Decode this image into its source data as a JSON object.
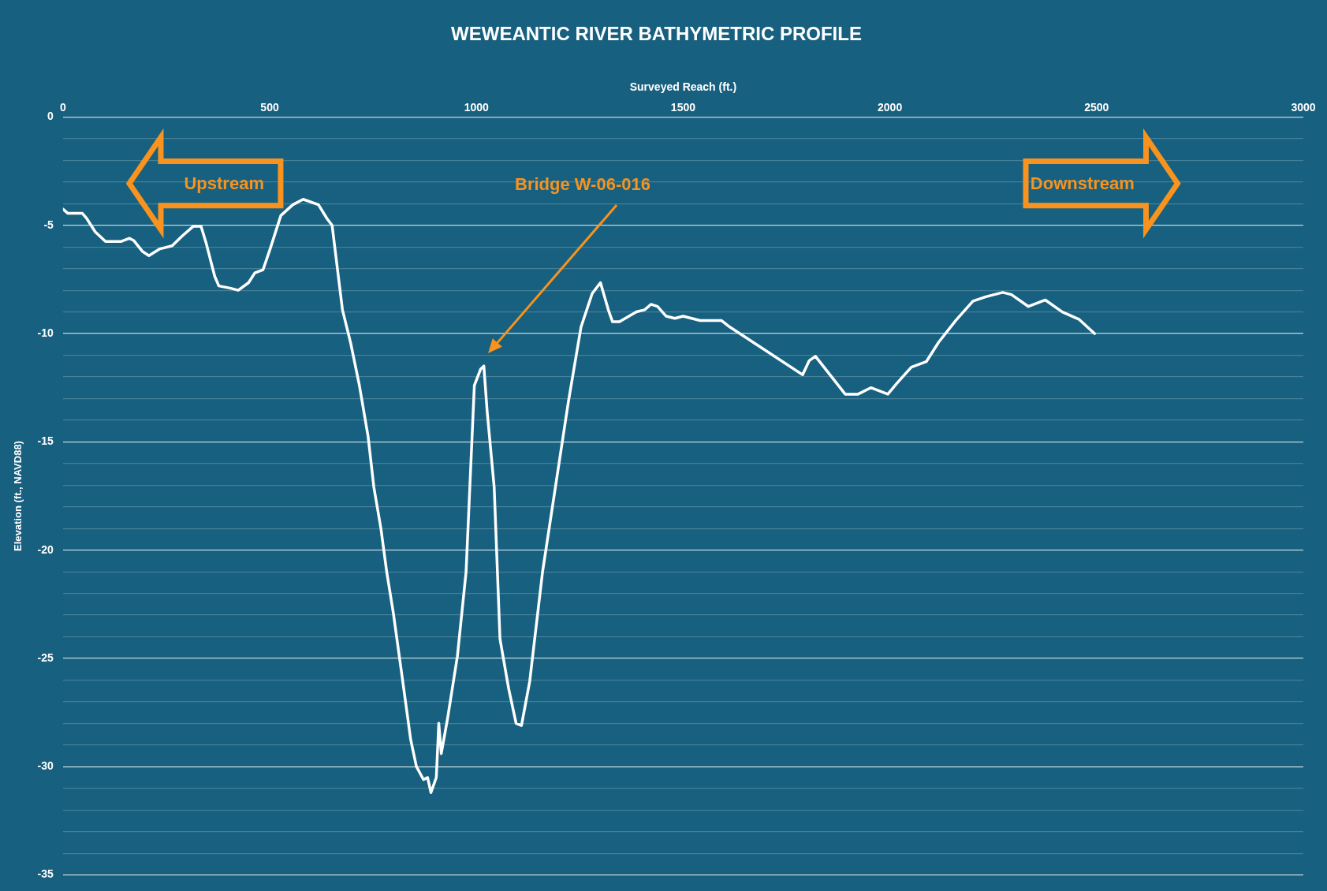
{
  "chart_data": {
    "type": "line",
    "title": "WEWEANTIC RIVER BATHYMETRIC PROFILE",
    "xlabel": "Surveyed Reach (ft.)",
    "ylabel": "Elevation (ft., NAVD88)",
    "xlim": [
      0,
      3000
    ],
    "xticks": [
      0,
      500,
      1000,
      1500,
      2000,
      2500,
      3000
    ],
    "ylim": [
      -35,
      0
    ],
    "yticks": [
      0,
      {
        "value": -1,
        "label": null
      },
      {
        "value": -2,
        "label": null
      },
      {
        "value": -3,
        "label": null
      },
      {
        "value": -4,
        "label": null
      },
      -5,
      {
        "value": -6,
        "label": null
      },
      {
        "value": -7,
        "label": null
      },
      {
        "value": -8,
        "label": null
      },
      {
        "value": -9,
        "label": null
      },
      -10,
      {
        "value": -11,
        "label": null
      },
      {
        "value": -12,
        "label": null
      },
      {
        "value": -13,
        "label": null
      },
      {
        "value": -14,
        "label": null
      },
      -15,
      {
        "value": -16,
        "label": null
      },
      {
        "value": -17,
        "label": null
      },
      {
        "value": -18,
        "label": null
      },
      {
        "value": -19,
        "label": null
      },
      -20,
      {
        "value": -21,
        "label": null
      },
      {
        "value": -22,
        "label": null
      },
      {
        "value": -23,
        "label": null
      },
      {
        "value": -24,
        "label": null
      },
      -25,
      {
        "value": -26,
        "label": null
      },
      {
        "value": -27,
        "label": null
      },
      {
        "value": -28,
        "label": null
      },
      {
        "value": -29,
        "label": null
      },
      -30,
      {
        "value": -31,
        "label": null
      },
      {
        "value": -32,
        "label": null
      },
      {
        "value": -33,
        "label": null
      },
      {
        "value": -34,
        "label": null
      },
      -35
    ],
    "grid": "y",
    "marker": "none",
    "line_style": "solid",
    "legend": false,
    "series": [
      {
        "color": "#ffffff",
        "x": [
          0,
          12,
          47,
          58,
          78,
          103,
          140,
          161,
          171,
          192,
          208,
          233,
          264,
          288,
          315,
          334,
          346,
          367,
          377,
          404,
          424,
          449,
          464,
          484,
          501,
          527,
          556,
          581,
          618,
          639,
          651,
          666,
          676,
          696,
          717,
          738,
          752,
          769,
          783,
          799,
          816,
          830,
          841,
          855,
          872,
          882,
          890,
          903,
          909,
          915,
          930,
          954,
          975,
          985,
          995,
          1010,
          1018,
          1026,
          1043,
          1057,
          1078,
          1096,
          1109,
          1129,
          1160,
          1191,
          1222,
          1253,
          1280,
          1300,
          1319,
          1329,
          1346,
          1387,
          1407,
          1422,
          1438,
          1459,
          1480,
          1500,
          1541,
          1593,
          1613,
          1789,
          1805,
          1820,
          1892,
          1923,
          1954,
          1995,
          2019,
          2052,
          2088,
          2118,
          2159,
          2201,
          2232,
          2273,
          2294,
          2335,
          2376,
          2417,
          2458,
          2495
        ],
        "values": [
          -4.25,
          -4.45,
          -4.45,
          -4.7,
          -5.3,
          -5.75,
          -5.75,
          -5.6,
          -5.7,
          -6.2,
          -6.4,
          -6.1,
          -5.95,
          -5.5,
          -5.05,
          -5.05,
          -5.8,
          -7.35,
          -7.8,
          -7.9,
          -8.0,
          -7.65,
          -7.2,
          -7.05,
          -6.1,
          -4.55,
          -4.05,
          -3.8,
          -4.05,
          -4.7,
          -5.0,
          -7.35,
          -8.9,
          -10.45,
          -12.4,
          -14.75,
          -17.1,
          -19.0,
          -21.0,
          -22.9,
          -25.25,
          -27.2,
          -28.75,
          -30.0,
          -30.6,
          -30.5,
          -31.2,
          -30.5,
          -28.0,
          -29.4,
          -27.8,
          -24.9,
          -21.0,
          -16.7,
          -12.4,
          -11.65,
          -11.5,
          -13.6,
          -17.1,
          -24.1,
          -26.4,
          -28.0,
          -28.1,
          -26.05,
          -21.0,
          -17.1,
          -13.2,
          -9.7,
          -8.15,
          -7.65,
          -8.9,
          -9.45,
          -9.45,
          -9.0,
          -8.9,
          -8.65,
          -8.75,
          -9.2,
          -9.3,
          -9.2,
          -9.4,
          -9.4,
          -9.7,
          -11.9,
          -11.25,
          -11.05,
          -12.8,
          -12.8,
          -12.5,
          -12.8,
          -12.25,
          -11.55,
          -11.3,
          -10.4,
          -9.4,
          -8.5,
          -8.3,
          -8.1,
          -8.2,
          -8.75,
          -8.45,
          -9.0,
          -9.35,
          -10.0
        ]
      }
    ],
    "annotations": [
      "Upstream",
      "Downstream",
      "Bridge W-06-016"
    ]
  }
}
